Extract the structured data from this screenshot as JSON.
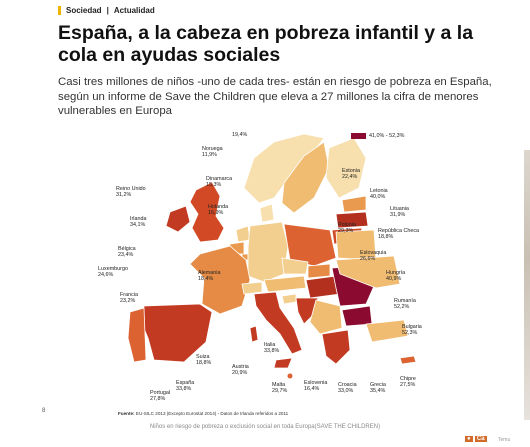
{
  "article": {
    "section_main": "Sociedad",
    "section_sub": "Actualidad",
    "headline": "España, a la cabeza en pobreza infantil y a la cola en ayudas sociales",
    "subtitle": "Casi tres millones de niños -uno de cada tres- están en riesgo de pobreza en España, según un informe de Save the Children que eleva a 27 millones la cifra de menores vulnerables en Europa",
    "caption": "Niños en riesgo de pobreza o exclusión social en toda Europa(SAVE THE CHILDREN)"
  },
  "map": {
    "legend_label": "41,0% - 52,3%",
    "legend_color": "#8b0a2f",
    "source_prefix": "Fuente:",
    "source_text": "EU-SILC 2013 (Excepto Eurostat 2014) - Datos de Irlanda referidos a 2011",
    "top_value": "19,4%",
    "countries": [
      {
        "name": "Noruega",
        "value": "11,9%",
        "color": "#f7dfae"
      },
      {
        "name": "Dinamarca",
        "value": "15,3%",
        "color": "#f7dfae"
      },
      {
        "name": "Holanda",
        "value": "16,9%",
        "color": "#f3cf8f"
      },
      {
        "name": "Reino Unido",
        "value": "31,2%",
        "color": "#d24a25"
      },
      {
        "name": "Irlanda",
        "value": "34,1%",
        "color": "#c33a22"
      },
      {
        "name": "Bélgica",
        "value": "23,4%",
        "color": "#e99a4e"
      },
      {
        "name": "Luxemburgo",
        "value": "24,6%",
        "color": "#e99a4e"
      },
      {
        "name": "Francia",
        "value": "23,2%",
        "color": "#e58b45"
      },
      {
        "name": "Alemania",
        "value": "18,4%",
        "color": "#f3cf8f"
      },
      {
        "name": "Suiza",
        "value": "18,8%",
        "color": "#f3cf8f"
      },
      {
        "name": "Austria",
        "value": "20,9%",
        "color": "#f0bc72"
      },
      {
        "name": "Italia",
        "value": "33,8%",
        "color": "#c33a22"
      },
      {
        "name": "España",
        "value": "33,8%",
        "color": "#c33a22"
      },
      {
        "name": "Portugal",
        "value": "27,8%",
        "color": "#dc6232"
      },
      {
        "name": "Estonia",
        "value": "22,4%",
        "color": "#e99a4e"
      },
      {
        "name": "Letonia",
        "value": "40,0%",
        "color": "#b3301f"
      },
      {
        "name": "Lituania",
        "value": "31,9%",
        "color": "#d24a25"
      },
      {
        "name": "Polonia",
        "value": "29,3%",
        "color": "#dc6232"
      },
      {
        "name": "República Checa",
        "value": "18,8%",
        "color": "#f3cf8f"
      },
      {
        "name": "Eslovaquia",
        "value": "26,6%",
        "color": "#e58b45"
      },
      {
        "name": "Hungría",
        "value": "40,9%",
        "color": "#b3301f"
      },
      {
        "name": "Rumanía",
        "value": "52,2%",
        "color": "#8b0a2f"
      },
      {
        "name": "Bulgaria",
        "value": "52,3%",
        "color": "#8b0a2f"
      },
      {
        "name": "Eslovenia",
        "value": "16,4%",
        "color": "#f3cf8f"
      },
      {
        "name": "Croacia",
        "value": "33,0%",
        "color": "#c33a22"
      },
      {
        "name": "Grecia",
        "value": "35,4%",
        "color": "#c33a22"
      },
      {
        "name": "Malta",
        "value": "29,7%",
        "color": "#dc6232"
      },
      {
        "name": "Chipre",
        "value": "27,5%",
        "color": "#dc6232"
      }
    ]
  },
  "misc": {
    "badge_text": "Ca",
    "badge_sub": "Temu",
    "left_mark": "8"
  }
}
